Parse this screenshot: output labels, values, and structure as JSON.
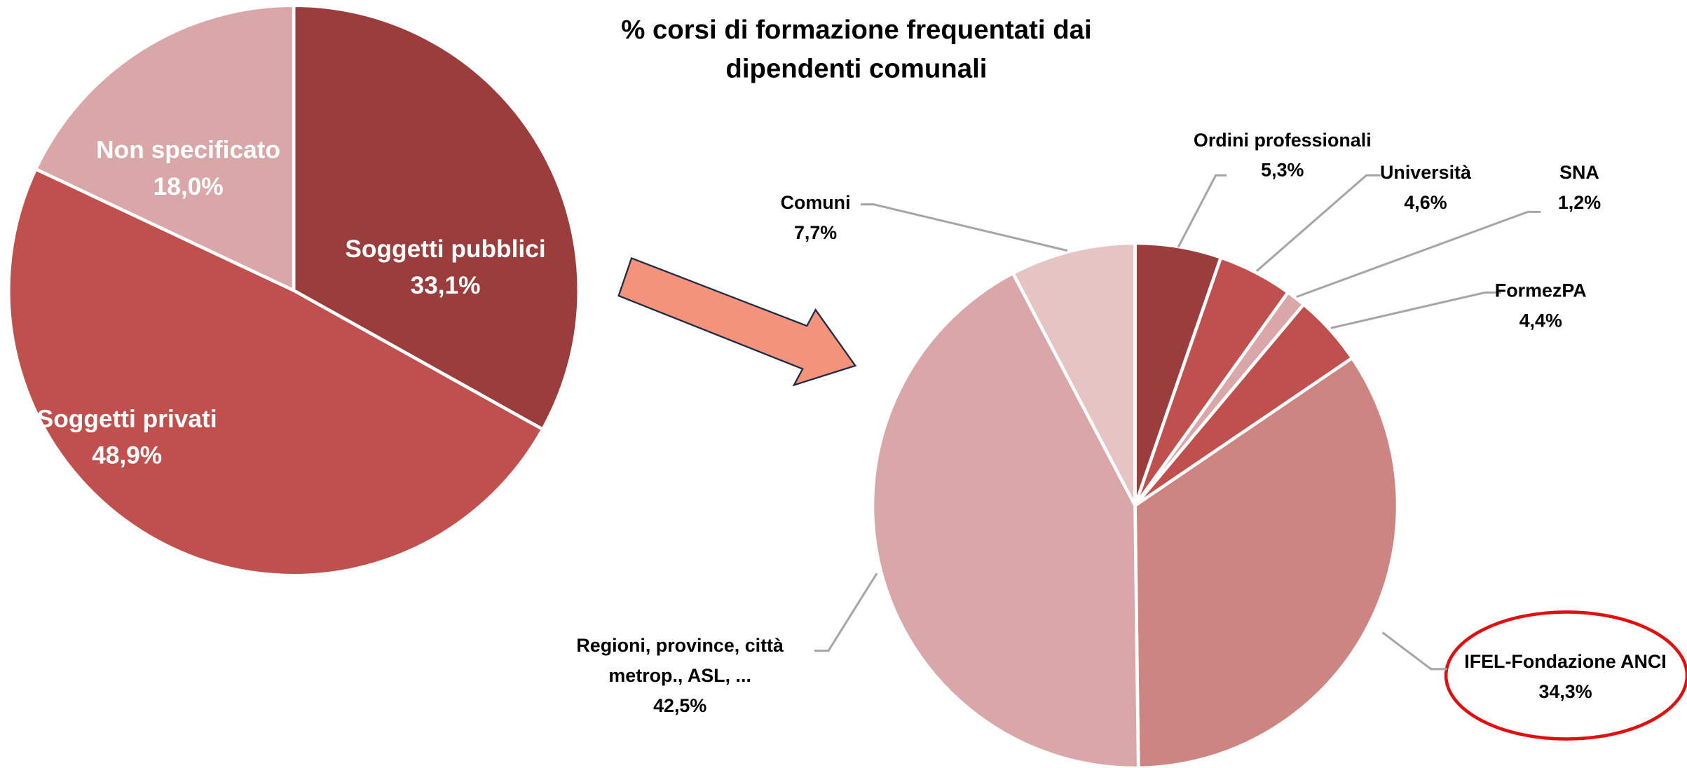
{
  "title": "% corsi di formazione frequentati dai dipendenti comunali",
  "chart_data": [
    {
      "type": "pie",
      "categories": [
        "Soggetti pubblici",
        "Soggetti privati",
        "Non specificato"
      ],
      "values": [
        33.1,
        48.9,
        18.0
      ],
      "value_labels": [
        "33,1%",
        "48,9%",
        "18,0%"
      ],
      "colors": [
        "#9b3d3d",
        "#c0504d",
        "#d9a7a7"
      ]
    },
    {
      "type": "pie",
      "categories": [
        "Ordini professionali",
        "Università",
        "SNA",
        "FormezPA",
        "IFEL-Fondazione ANCI",
        "Regioni, province, città metrop., ASL, ...",
        "Comuni"
      ],
      "values": [
        5.3,
        4.6,
        1.2,
        4.4,
        34.3,
        42.5,
        7.7
      ],
      "value_labels": [
        "5,3%",
        "4,6%",
        "1,2%",
        "4,4%",
        "34,3%",
        "42,5%",
        "7,7%"
      ],
      "colors": [
        "#9b3d3d",
        "#c0504d",
        "#d9a7a7",
        "#c0504d",
        "#cd8582",
        "#d9a7a7",
        "#e6c4c4"
      ]
    }
  ]
}
